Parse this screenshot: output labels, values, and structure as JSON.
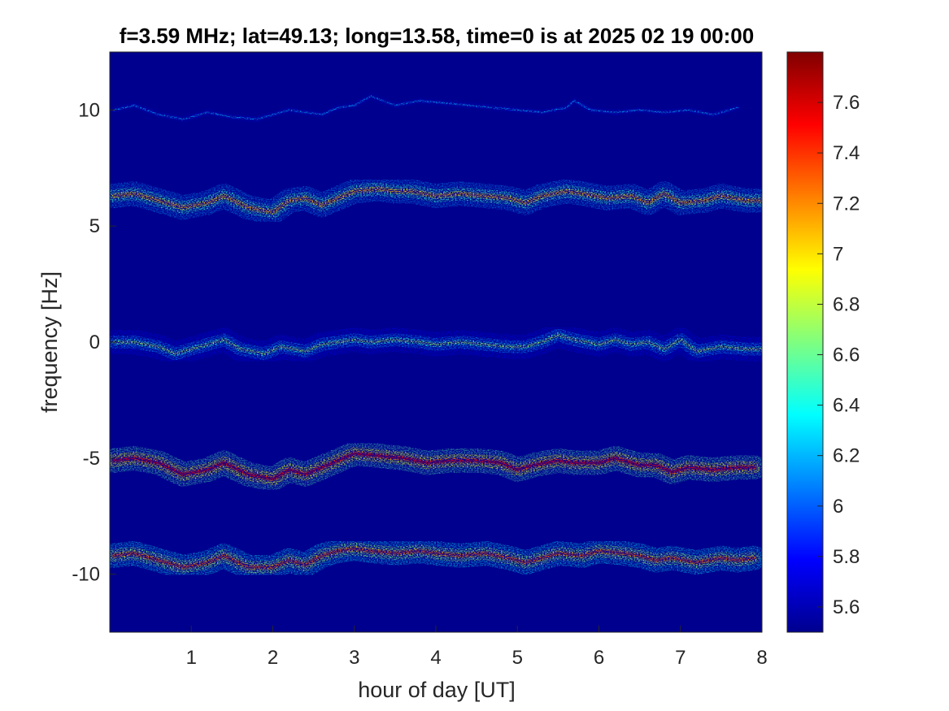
{
  "chart_data": {
    "type": "heatmap",
    "title": "f=3.59 MHz;  lat=49.13; long=13.58, time=0 is at 2025 02 19 00:00",
    "xlabel": "hour of day [UT]",
    "ylabel": "frequency [Hz]",
    "xlim": [
      0,
      8
    ],
    "ylim": [
      -12.5,
      12.5
    ],
    "xticks": [
      "1",
      "2",
      "3",
      "4",
      "5",
      "6",
      "7",
      "8"
    ],
    "xtick_values": [
      1,
      2,
      3,
      4,
      5,
      6,
      7,
      8
    ],
    "yticks": [
      "10",
      "5",
      "0",
      "-5",
      "-10"
    ],
    "ytick_values": [
      10,
      5,
      0,
      -5,
      -10
    ],
    "grid": false,
    "background_color": "#00008f",
    "colormap": "jet",
    "colorbar": {
      "clim": [
        5.5,
        7.8
      ],
      "ticks": [
        "5.6",
        "5.8",
        "6",
        "6.2",
        "6.4",
        "6.6",
        "6.8",
        "7",
        "7.2",
        "7.4",
        "7.6"
      ],
      "tick_values": [
        5.6,
        5.8,
        6.0,
        6.2,
        6.4,
        6.6,
        6.8,
        7.0,
        7.2,
        7.4,
        7.6
      ]
    },
    "traces": [
      {
        "center_hz": 10,
        "intensity": 6.2,
        "x_end": 7.7,
        "points": [
          [
            0.05,
            10.0
          ],
          [
            0.3,
            10.2
          ],
          [
            0.6,
            9.8
          ],
          [
            0.9,
            9.6
          ],
          [
            1.2,
            9.9
          ],
          [
            1.5,
            9.7
          ],
          [
            1.8,
            9.6
          ],
          [
            2.2,
            10.0
          ],
          [
            2.6,
            9.8
          ],
          [
            2.8,
            10.1
          ],
          [
            3.0,
            10.2
          ],
          [
            3.2,
            10.6
          ],
          [
            3.5,
            10.2
          ],
          [
            3.8,
            10.4
          ],
          [
            4.1,
            10.3
          ],
          [
            4.4,
            10.2
          ],
          [
            4.7,
            10.1
          ],
          [
            5.0,
            10.0
          ],
          [
            5.3,
            9.9
          ],
          [
            5.6,
            10.1
          ],
          [
            5.7,
            10.4
          ],
          [
            5.9,
            10.0
          ],
          [
            6.2,
            9.9
          ],
          [
            6.5,
            10.0
          ],
          [
            6.8,
            9.9
          ],
          [
            7.1,
            10.0
          ],
          [
            7.4,
            9.8
          ],
          [
            7.7,
            10.1
          ]
        ]
      },
      {
        "center_hz": 6,
        "intensity": 7.1,
        "x_end": 8.0,
        "points": [
          [
            0.05,
            6.3
          ],
          [
            0.3,
            6.4
          ],
          [
            0.6,
            6.1
          ],
          [
            0.9,
            5.8
          ],
          [
            1.2,
            6.0
          ],
          [
            1.4,
            6.3
          ],
          [
            1.7,
            5.8
          ],
          [
            2.0,
            5.6
          ],
          [
            2.2,
            6.1
          ],
          [
            2.4,
            6.2
          ],
          [
            2.6,
            5.9
          ],
          [
            2.8,
            6.2
          ],
          [
            3.0,
            6.5
          ],
          [
            3.3,
            6.6
          ],
          [
            3.5,
            6.5
          ],
          [
            3.7,
            6.5
          ],
          [
            4.0,
            6.3
          ],
          [
            4.3,
            6.4
          ],
          [
            4.6,
            6.3
          ],
          [
            4.9,
            6.2
          ],
          [
            5.1,
            6.0
          ],
          [
            5.3,
            6.3
          ],
          [
            5.6,
            6.5
          ],
          [
            5.8,
            6.4
          ],
          [
            6.1,
            6.2
          ],
          [
            6.4,
            6.3
          ],
          [
            6.6,
            6.0
          ],
          [
            6.8,
            6.4
          ],
          [
            7.0,
            6.0
          ],
          [
            7.3,
            6.1
          ],
          [
            7.5,
            6.3
          ],
          [
            7.8,
            6.1
          ],
          [
            8.0,
            6.1
          ]
        ]
      },
      {
        "center_hz": 0,
        "intensity": 6.7,
        "x_end": 8.0,
        "points": [
          [
            0.05,
            0.0
          ],
          [
            0.3,
            0.0
          ],
          [
            0.6,
            -0.2
          ],
          [
            0.8,
            -0.5
          ],
          [
            1.1,
            -0.2
          ],
          [
            1.4,
            0.1
          ],
          [
            1.6,
            -0.3
          ],
          [
            1.9,
            -0.5
          ],
          [
            2.1,
            -0.2
          ],
          [
            2.4,
            -0.4
          ],
          [
            2.6,
            -0.1
          ],
          [
            2.8,
            0.0
          ],
          [
            3.0,
            0.1
          ],
          [
            3.2,
            0.0
          ],
          [
            3.5,
            0.1
          ],
          [
            3.8,
            0.0
          ],
          [
            4.0,
            -0.1
          ],
          [
            4.3,
            0.0
          ],
          [
            4.6,
            -0.1
          ],
          [
            4.9,
            -0.2
          ],
          [
            5.1,
            -0.2
          ],
          [
            5.3,
            0.0
          ],
          [
            5.5,
            0.3
          ],
          [
            5.7,
            0.1
          ],
          [
            6.0,
            -0.1
          ],
          [
            6.2,
            0.1
          ],
          [
            6.4,
            -0.1
          ],
          [
            6.6,
            0.0
          ],
          [
            6.8,
            -0.3
          ],
          [
            7.0,
            0.1
          ],
          [
            7.2,
            -0.4
          ],
          [
            7.5,
            -0.2
          ],
          [
            7.8,
            -0.3
          ],
          [
            8.0,
            -0.3
          ]
        ]
      },
      {
        "center_hz": -5,
        "intensity": 7.5,
        "x_end": 7.9,
        "points": [
          [
            0.05,
            -5.1
          ],
          [
            0.3,
            -5.0
          ],
          [
            0.6,
            -5.2
          ],
          [
            0.9,
            -5.7
          ],
          [
            1.2,
            -5.5
          ],
          [
            1.4,
            -5.2
          ],
          [
            1.7,
            -5.7
          ],
          [
            2.0,
            -5.9
          ],
          [
            2.2,
            -5.5
          ],
          [
            2.4,
            -5.7
          ],
          [
            2.6,
            -5.4
          ],
          [
            2.8,
            -5.1
          ],
          [
            3.0,
            -4.8
          ],
          [
            3.3,
            -4.9
          ],
          [
            3.6,
            -5.0
          ],
          [
            3.9,
            -5.2
          ],
          [
            4.2,
            -5.1
          ],
          [
            4.5,
            -5.1
          ],
          [
            4.8,
            -5.2
          ],
          [
            5.0,
            -5.5
          ],
          [
            5.2,
            -5.3
          ],
          [
            5.5,
            -5.1
          ],
          [
            5.7,
            -5.2
          ],
          [
            6.0,
            -5.2
          ],
          [
            6.2,
            -5.0
          ],
          [
            6.5,
            -5.3
          ],
          [
            6.7,
            -5.3
          ],
          [
            6.9,
            -5.6
          ],
          [
            7.1,
            -5.4
          ],
          [
            7.4,
            -5.5
          ],
          [
            7.7,
            -5.4
          ],
          [
            7.9,
            -5.4
          ]
        ]
      },
      {
        "center_hz": -9,
        "intensity": 7.3,
        "x_end": 7.9,
        "points": [
          [
            0.05,
            -9.2
          ],
          [
            0.3,
            -9.1
          ],
          [
            0.6,
            -9.4
          ],
          [
            0.9,
            -9.7
          ],
          [
            1.2,
            -9.5
          ],
          [
            1.4,
            -9.2
          ],
          [
            1.7,
            -9.7
          ],
          [
            2.0,
            -9.7
          ],
          [
            2.2,
            -9.4
          ],
          [
            2.4,
            -9.6
          ],
          [
            2.6,
            -9.2
          ],
          [
            2.8,
            -9.0
          ],
          [
            3.0,
            -8.9
          ],
          [
            3.2,
            -9.0
          ],
          [
            3.5,
            -9.1
          ],
          [
            3.8,
            -9.0
          ],
          [
            4.0,
            -9.1
          ],
          [
            4.3,
            -9.2
          ],
          [
            4.6,
            -9.1
          ],
          [
            4.9,
            -9.3
          ],
          [
            5.1,
            -9.5
          ],
          [
            5.3,
            -9.3
          ],
          [
            5.5,
            -9.1
          ],
          [
            5.8,
            -9.2
          ],
          [
            6.0,
            -9.0
          ],
          [
            6.3,
            -9.1
          ],
          [
            6.5,
            -9.2
          ],
          [
            6.7,
            -9.4
          ],
          [
            6.9,
            -9.3
          ],
          [
            7.2,
            -9.5
          ],
          [
            7.5,
            -9.3
          ],
          [
            7.7,
            -9.4
          ],
          [
            7.9,
            -9.3
          ]
        ]
      }
    ]
  }
}
